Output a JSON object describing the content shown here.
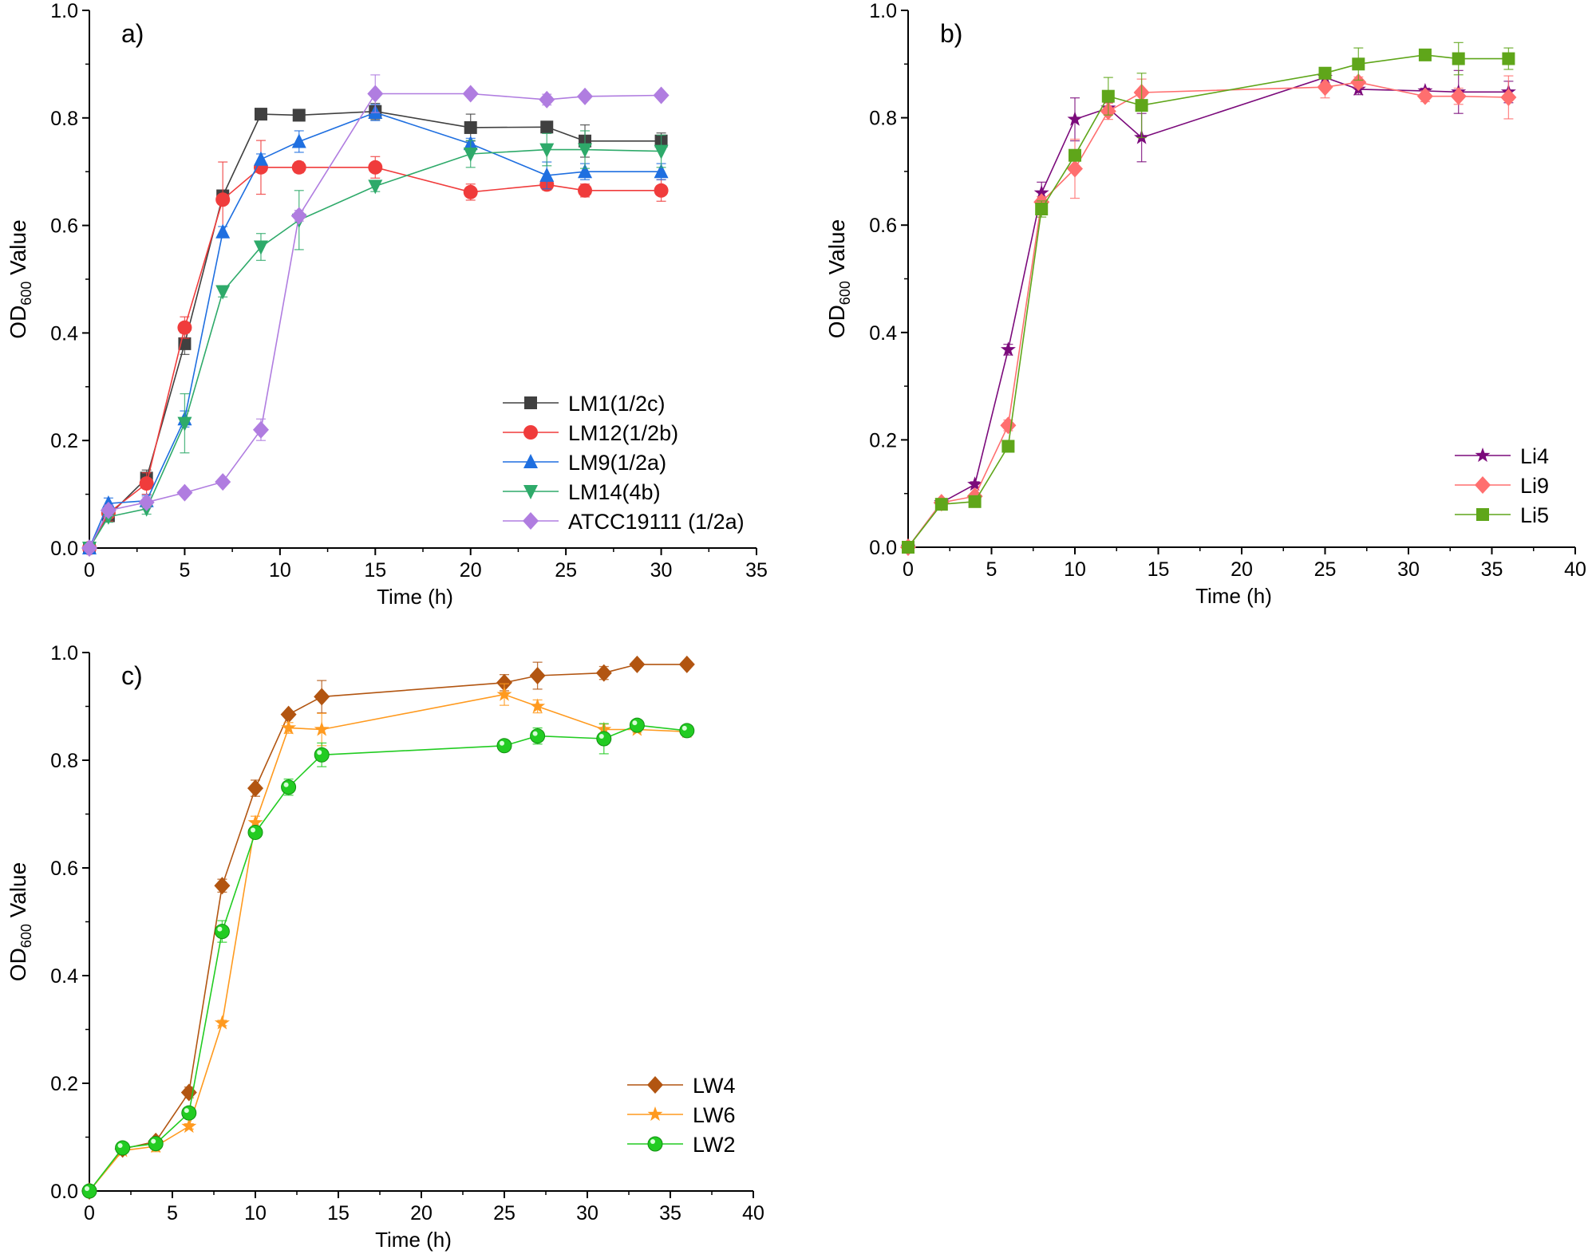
{
  "chart_data": [
    {
      "type": "line",
      "panel_label": "a)",
      "xlabel": "Time (h)",
      "ylabel": {
        "main": "OD",
        "sub": "600",
        "rest": " Value"
      },
      "xlim": [
        0,
        35
      ],
      "ylim": [
        0,
        1.0
      ],
      "xticks": [
        0,
        5,
        10,
        15,
        20,
        25,
        30,
        35
      ],
      "yticks": [
        "0.0",
        "0.2",
        "0.4",
        "0.6",
        "0.8",
        "1.0"
      ],
      "legend": "bottom-right",
      "x": [
        0,
        1,
        3,
        5,
        7,
        9,
        11,
        15,
        20,
        24,
        26,
        30
      ],
      "series": [
        {
          "name": "LM1(1/2c)",
          "color": "#404040",
          "marker": "square",
          "values": [
            0,
            0.06,
            0.13,
            0.38,
            0.655,
            0.807,
            0.805,
            0.812,
            0.782,
            0.783,
            0.757,
            0.757
          ],
          "errors": [
            0,
            0.01,
            0.015,
            0.02,
            0.01,
            0.005,
            0.01,
            0.015,
            0.025,
            0.005,
            0.03,
            0.015
          ]
        },
        {
          "name": "LM12(1/2b)",
          "color": "#f03c3c",
          "marker": "circle",
          "values": [
            0,
            0.065,
            0.12,
            0.41,
            0.648,
            0.708,
            0.708,
            0.708,
            0.662,
            0.676,
            0.665,
            0.665
          ],
          "errors": [
            0,
            0.015,
            0.02,
            0.02,
            0.07,
            0.05,
            0.01,
            0.02,
            0.015,
            0.01,
            0.012,
            0.02
          ]
        },
        {
          "name": "LM9(1/2a)",
          "color": "#1f6fe0",
          "marker": "triangle-up",
          "values": [
            0,
            0.083,
            0.088,
            0.24,
            0.588,
            0.723,
            0.756,
            0.81,
            0.752,
            0.693,
            0.7,
            0.7
          ],
          "errors": [
            0,
            0.01,
            0.01,
            0.015,
            0.01,
            0.01,
            0.02,
            0.015,
            0.01,
            0.025,
            0.015,
            0.015
          ]
        },
        {
          "name": "LM14(4b)",
          "color": "#2eaa6a",
          "marker": "triangle-down",
          "values": [
            0,
            0.058,
            0.073,
            0.232,
            0.477,
            0.56,
            0.61,
            0.673,
            0.733,
            0.741,
            0.741,
            0.738
          ],
          "errors": [
            0,
            0.01,
            0.01,
            0.055,
            0.01,
            0.025,
            0.055,
            0.01,
            0.025,
            0.03,
            0.035,
            0.03
          ]
        },
        {
          "name": "ATCC19111  (1/2a)",
          "color": "#b07de0",
          "marker": "diamond",
          "values": [
            0,
            0.07,
            0.085,
            0.103,
            0.123,
            0.22,
            0.618,
            0.845,
            0.845,
            0.834,
            0.84,
            0.842
          ],
          "errors": [
            0,
            0.01,
            0.01,
            0.005,
            0.005,
            0.02,
            0.01,
            0.035,
            0.005,
            0.01,
            0.005,
            0.005
          ]
        }
      ]
    },
    {
      "type": "line",
      "panel_label": "b)",
      "xlabel": "Time (h)",
      "ylabel": {
        "main": "OD",
        "sub": "600",
        "rest": " Value"
      },
      "xlim": [
        0,
        40
      ],
      "ylim": [
        0,
        1.0
      ],
      "xticks": [
        0,
        5,
        10,
        15,
        20,
        25,
        30,
        35,
        40
      ],
      "yticks": [
        "0.0",
        "0.2",
        "0.4",
        "0.6",
        "0.8",
        "1.0"
      ],
      "legend": "bottom-right",
      "x": [
        0,
        2,
        4,
        6,
        8,
        10,
        12,
        14,
        25,
        27,
        31,
        33,
        36
      ],
      "series": [
        {
          "name": "Li4",
          "color": "#7b0a7b",
          "marker": "star",
          "values": [
            0,
            0.083,
            0.117,
            0.368,
            0.66,
            0.797,
            0.818,
            0.763,
            0.875,
            0.853,
            0.85,
            0.848,
            0.848
          ],
          "errors": [
            0,
            0.005,
            0.005,
            0.01,
            0.02,
            0.04,
            0.01,
            0.045,
            0.01,
            0.01,
            0.005,
            0.04,
            0.02
          ]
        },
        {
          "name": "Li9",
          "color": "#ff6f6f",
          "marker": "diamond",
          "values": [
            0,
            0.083,
            0.095,
            0.227,
            0.643,
            0.705,
            0.812,
            0.847,
            0.857,
            0.866,
            0.84,
            0.84,
            0.838
          ],
          "errors": [
            0,
            0.005,
            0.005,
            0.01,
            0.01,
            0.055,
            0.015,
            0.025,
            0.02,
            0.01,
            0.01,
            0.015,
            0.04
          ]
        },
        {
          "name": "Li5",
          "color": "#5fa61a",
          "marker": "square",
          "values": [
            0,
            0.08,
            0.085,
            0.188,
            0.63,
            0.73,
            0.84,
            0.823,
            0.883,
            0.9,
            0.917,
            0.91,
            0.91
          ],
          "errors": [
            0,
            0.005,
            0.005,
            0.005,
            0.015,
            0.01,
            0.035,
            0.06,
            0.01,
            0.03,
            0.005,
            0.03,
            0.02
          ]
        }
      ]
    },
    {
      "type": "line",
      "panel_label": "c)",
      "xlabel": "Time (h)",
      "ylabel": {
        "main": "OD",
        "sub": "600",
        "rest": " Value"
      },
      "xlim": [
        0,
        40
      ],
      "ylim": [
        0,
        1.0
      ],
      "xticks": [
        0,
        5,
        10,
        15,
        20,
        25,
        30,
        35,
        40
      ],
      "yticks": [
        "0.0",
        "0.2",
        "0.4",
        "0.6",
        "0.8",
        "1.0"
      ],
      "legend": "bottom-right",
      "x": [
        0,
        2,
        4,
        6,
        8,
        10,
        12,
        14,
        25,
        27,
        31,
        33,
        36
      ],
      "series": [
        {
          "name": "LW4",
          "color": "#b25511",
          "marker": "diamond",
          "values": [
            0,
            0.078,
            0.092,
            0.183,
            0.567,
            0.748,
            0.885,
            0.918,
            0.944,
            0.957,
            0.962,
            0.978,
            0.978
          ],
          "errors": [
            0,
            0.005,
            0.005,
            0.01,
            0.012,
            0.015,
            0.005,
            0.03,
            0.015,
            0.025,
            0.012,
            0.005,
            0.005
          ]
        },
        {
          "name": "LW6",
          "color": "#ff9a1f",
          "marker": "star",
          "values": [
            0,
            0.075,
            0.083,
            0.12,
            0.312,
            0.684,
            0.86,
            0.857,
            0.922,
            0.9,
            0.857,
            0.857,
            0.853
          ],
          "errors": [
            0,
            0.005,
            0.01,
            0.005,
            0.005,
            0.012,
            0.01,
            0.03,
            0.02,
            0.012,
            0.01,
            0.005,
            0.005
          ]
        },
        {
          "name": "LW2",
          "color": "#22cc22",
          "marker": "sphere",
          "values": [
            0,
            0.08,
            0.088,
            0.145,
            0.482,
            0.666,
            0.75,
            0.81,
            0.827,
            0.845,
            0.84,
            0.865,
            0.855
          ],
          "errors": [
            0,
            0.005,
            0.005,
            0.01,
            0.02,
            0.01,
            0.015,
            0.022,
            0.008,
            0.015,
            0.028,
            0.005,
            0.005
          ]
        }
      ]
    }
  ]
}
